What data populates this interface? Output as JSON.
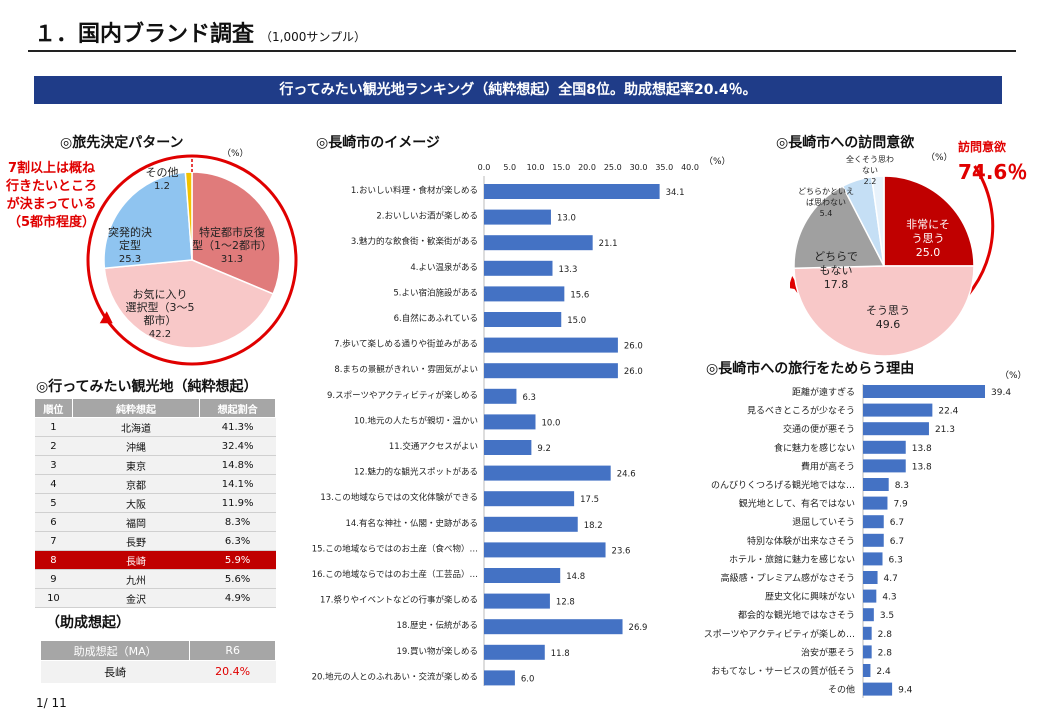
{
  "header": {
    "title": "１．国内ブランド調査",
    "sample": "（1,000サンプル）"
  },
  "banner": "行ってみたい観光地ランキング（純粋想起）全国8位。助成想起率20.4％。",
  "travel_pattern": {
    "title": "◎旅先決定パターン",
    "unit": "（%）",
    "annotation": [
      "7割以上は概ね",
      "行きたいところ",
      "が決まっている",
      "（5都市程度）"
    ]
  },
  "image": {
    "title": "◎長崎市のイメージ",
    "unit": "（%）"
  },
  "visit": {
    "title": "◎長崎市への訪問意欲",
    "unit": "（%）",
    "highlight_label": "訪問意欲",
    "highlight_value": "74.6％"
  },
  "hesitate": {
    "title": "◎長崎市への旅行をためらう理由",
    "unit": "（%）"
  },
  "ranking": {
    "title": "◎行ってみたい観光地（純粋想起）",
    "headers": [
      "順位",
      "純粋想起",
      "想起割合"
    ],
    "rows": [
      [
        "1",
        "北海道",
        "41.3%"
      ],
      [
        "2",
        "沖縄",
        "32.4%"
      ],
      [
        "3",
        "東京",
        "14.8%"
      ],
      [
        "4",
        "京都",
        "14.1%"
      ],
      [
        "5",
        "大阪",
        "11.9%"
      ],
      [
        "6",
        "福岡",
        "8.3%"
      ],
      [
        "7",
        "長野",
        "6.3%"
      ],
      [
        "8",
        "長崎",
        "5.9%"
      ],
      [
        "9",
        "九州",
        "5.6%"
      ],
      [
        "10",
        "金沢",
        "4.9%"
      ]
    ]
  },
  "aided": {
    "title": "（助成想起）",
    "headers": [
      "助成想起（MA）",
      "R6"
    ],
    "row": [
      "長崎",
      "20.4%"
    ]
  },
  "page_number": "1/ 11",
  "colors": {
    "bar": "#4472c4",
    "banner": "#1f3c88",
    "accent": "#e00000"
  },
  "chart_data": [
    {
      "type": "pie",
      "slices": [
        {
          "label": "特定都市反復型（1～2都市）",
          "value": 31.3,
          "color": "#e07b7b"
        },
        {
          "label": "お気に入り選択型（3～5都市）",
          "value": 42.2,
          "color": "#f8c8c8"
        },
        {
          "label": "突発的決定型",
          "value": 25.3,
          "color": "#8fc4f0"
        },
        {
          "label": "その他",
          "value": 1.2,
          "color": "#f2c200"
        }
      ]
    },
    {
      "type": "bar",
      "orientation": "horizontal",
      "xlim": [
        0,
        40
      ],
      "ticks": [
        "0.0",
        "5.0",
        "10.0",
        "15.0",
        "20.0",
        "25.0",
        "30.0",
        "35.0",
        "40.0"
      ],
      "categories": [
        "1.おいしい料理・食材が楽しめる",
        "2.おいしいお酒が楽しめる",
        "3.魅力的な飲食街・歓楽街がある",
        "4.よい温泉がある",
        "5.よい宿泊施設がある",
        "6.自然にあふれている",
        "7.歩いて楽しめる通りや街並みがある",
        "8.まちの景観がきれい・雰囲気がよい",
        "9.スポーツやアクティビティが楽しめる",
        "10.地元の人たちが親切・温かい",
        "11.交通アクセスがよい",
        "12.魅力的な観光スポットがある",
        "13.この地域ならではの文化体験ができる",
        "14.有名な神社・仏閣・史跡がある",
        "15.この地域ならではのお土産（食べ物）…",
        "16.この地域ならではのお土産（工芸品）…",
        "17.祭りやイベントなどの行事が楽しめる",
        "18.歴史・伝統がある",
        "19.買い物が楽しめる",
        "20.地元の人とのふれあい・交流が楽しめる"
      ],
      "values": [
        34.1,
        13.0,
        21.1,
        13.3,
        15.6,
        15.0,
        26.0,
        26.0,
        6.3,
        10.0,
        9.2,
        24.6,
        17.5,
        18.2,
        23.6,
        14.8,
        12.8,
        26.9,
        11.8,
        6.0
      ]
    },
    {
      "type": "pie",
      "slices": [
        {
          "label": "非常にそう思う",
          "value": 25.0,
          "color": "#c00000"
        },
        {
          "label": "そう思う",
          "value": 49.6,
          "color": "#f8c8c8"
        },
        {
          "label": "どちらでもない",
          "value": 17.8,
          "color": "#a0a0a0"
        },
        {
          "label": "どちらかといえば思わない",
          "value": 5.4,
          "color": "#c5dff5"
        },
        {
          "label": "全くそう思わない",
          "value": 2.2,
          "color": "#e8f2fb"
        }
      ]
    },
    {
      "type": "bar",
      "orientation": "horizontal",
      "categories": [
        "距離が遠すぎる",
        "見るべきところが少なそう",
        "交通の便が悪そう",
        "食に魅力を感じない",
        "費用が高そう",
        "のんびりくつろげる観光地ではな…",
        "観光地として、有名ではない",
        "退屈していそう",
        "特別な体験が出来なさそう",
        "ホテル・旅館に魅力を感じない",
        "高級感・プレミアム感がなさそう",
        "歴史文化に興味がない",
        "都会的な観光地ではなさそう",
        "スポーツやアクティビティが楽しめ…",
        "治安が悪そう",
        "おもてなし・サービスの質が低そう",
        "その他"
      ],
      "values": [
        39.4,
        22.4,
        21.3,
        13.8,
        13.8,
        8.3,
        7.9,
        6.7,
        6.7,
        6.3,
        4.7,
        4.3,
        3.5,
        2.8,
        2.8,
        2.4,
        9.4
      ]
    }
  ]
}
